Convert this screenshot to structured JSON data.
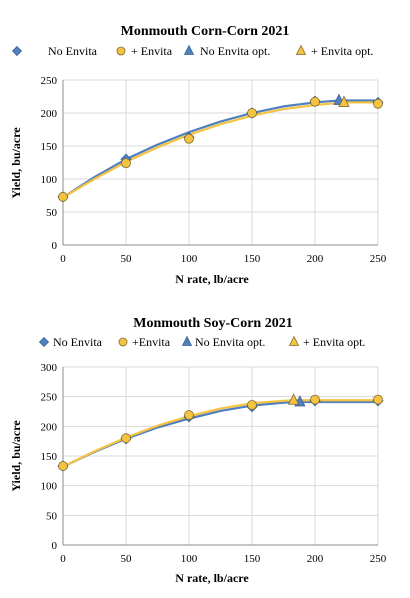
{
  "chart_data": [
    {
      "type": "scatter",
      "title": "Monmouth Corn-Corn 2021",
      "xlabel": "N rate, lb/acre",
      "ylabel": "Yield, bu/acre",
      "xlim": [
        0,
        250
      ],
      "ylim": [
        0,
        250
      ],
      "xticks": [
        0,
        50,
        100,
        150,
        200,
        250
      ],
      "yticks": [
        0,
        50,
        100,
        150,
        200,
        250
      ],
      "grid": true,
      "legend_position": "top",
      "colors": {
        "no_envita": "#4f7fbf",
        "envita": "#f5c342",
        "marker_edge": "#7f6a2e"
      },
      "series": [
        {
          "name": "No Envita",
          "marker": "diamond",
          "x": [
            0,
            50,
            100,
            150,
            200,
            250
          ],
          "values": [
            73,
            130,
            163,
            200,
            218,
            216
          ]
        },
        {
          "name": "+ Envita",
          "marker": "circle",
          "x": [
            0,
            50,
            100,
            150,
            200,
            250
          ],
          "values": [
            73,
            124,
            161,
            200,
            217,
            214
          ]
        },
        {
          "name": "No Envita opt.",
          "marker": "triangle",
          "x": [
            219
          ],
          "values": [
            219
          ]
        },
        {
          "name": "+ Envita opt.",
          "marker": "triangle",
          "x": [
            223
          ],
          "values": [
            216
          ]
        }
      ],
      "fit_curves": [
        {
          "series": "No Envita",
          "color": "#4f7fbf",
          "x": [
            0,
            25,
            50,
            75,
            100,
            125,
            150,
            175,
            200,
            219,
            250
          ],
          "values": [
            72,
            103,
            130,
            152,
            171,
            187,
            200,
            210,
            216,
            219,
            219
          ]
        },
        {
          "series": "+ Envita",
          "color": "#f5c342",
          "x": [
            0,
            25,
            50,
            75,
            100,
            125,
            150,
            175,
            200,
            223,
            250
          ],
          "values": [
            72,
            100,
            126,
            148,
            167,
            183,
            196,
            206,
            212,
            216,
            216
          ]
        }
      ]
    },
    {
      "type": "scatter",
      "title": "Monmouth Soy-Corn 2021",
      "xlabel": "N rate, lb/acre",
      "ylabel": "Yield, bu/acre",
      "xlim": [
        0,
        250
      ],
      "ylim": [
        0,
        300
      ],
      "xticks": [
        0,
        50,
        100,
        150,
        200,
        250
      ],
      "yticks": [
        0,
        50,
        100,
        150,
        200,
        250,
        300
      ],
      "grid": true,
      "legend_position": "top",
      "colors": {
        "no_envita": "#4f7fbf",
        "envita": "#f5c342",
        "marker_edge": "#7f6a2e"
      },
      "series": [
        {
          "name": "No Envita",
          "marker": "diamond",
          "x": [
            0,
            50,
            100,
            150,
            200,
            250
          ],
          "values": [
            133,
            179,
            216,
            233,
            243,
            243
          ]
        },
        {
          "name": "+Envita",
          "marker": "circle",
          "x": [
            0,
            50,
            100,
            150,
            200,
            250
          ],
          "values": [
            133,
            180,
            219,
            236,
            245,
            245
          ]
        },
        {
          "name": "No Envita opt.",
          "marker": "triangle",
          "x": [
            188
          ],
          "values": [
            241
          ]
        },
        {
          "name": "+ Envita opt.",
          "marker": "triangle",
          "x": [
            183
          ],
          "values": [
            244
          ]
        }
      ],
      "fit_curves": [
        {
          "series": "No Envita",
          "color": "#4f7fbf",
          "x": [
            0,
            25,
            50,
            75,
            100,
            125,
            150,
            175,
            188,
            250
          ],
          "values": [
            132,
            157,
            179,
            198,
            213,
            226,
            235,
            240,
            241,
            241
          ]
        },
        {
          "series": "+Envita",
          "color": "#f5c342",
          "x": [
            0,
            25,
            50,
            75,
            100,
            125,
            150,
            175,
            183,
            250
          ],
          "values": [
            132,
            158,
            181,
            201,
            217,
            230,
            239,
            243,
            244,
            244
          ]
        }
      ]
    }
  ]
}
